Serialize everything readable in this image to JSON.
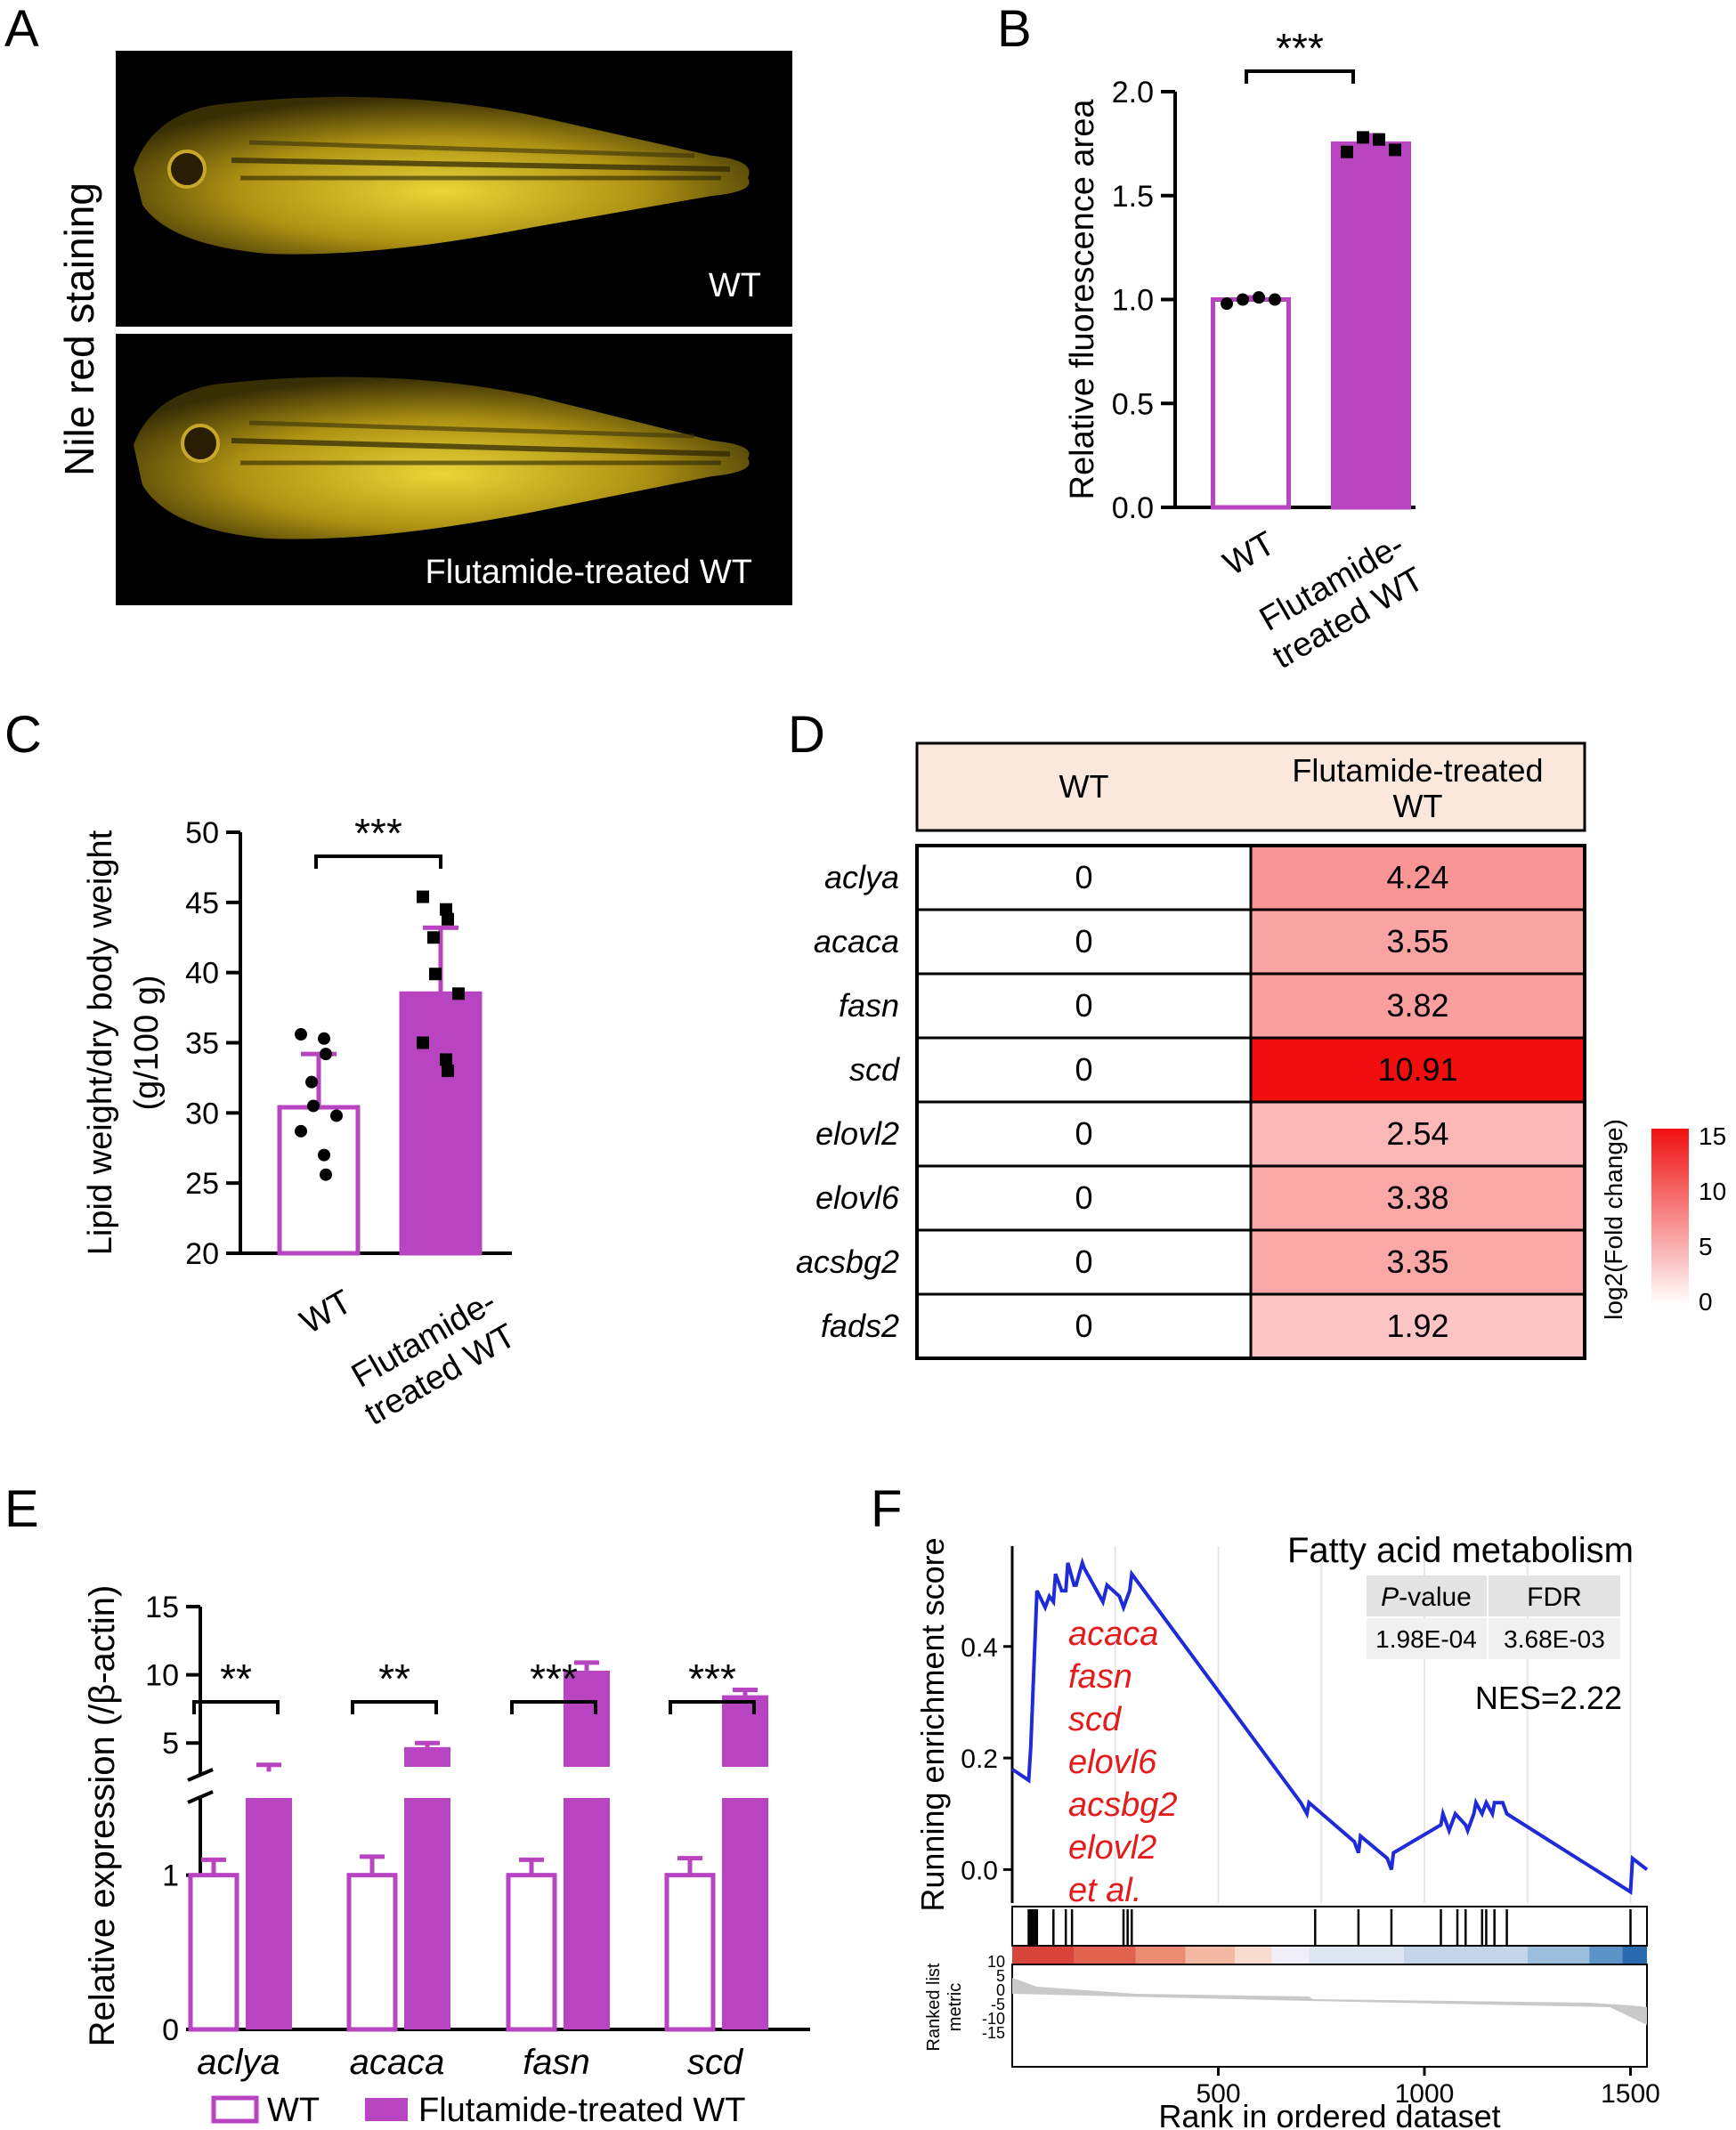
{
  "colors": {
    "wt": "#ffffff",
    "flut": "#b944c1",
    "axis": "#000000",
    "red_text": "#e31b1b",
    "gsea_line": "#1f2bd6",
    "table_header": "#fbe8dc"
  },
  "panel_a": {
    "letter": "A",
    "ylabel": "Nile red staining",
    "image_labels": [
      "WT",
      "Flutamide-treated WT"
    ]
  },
  "chart_data": [
    {
      "panel": "B",
      "type": "bar",
      "categories": [
        "WT",
        "Flutamide-\ntreated WT"
      ],
      "values": [
        1.0,
        1.75
      ],
      "error": [
        0.01,
        0.04
      ],
      "points": [
        [
          0.98,
          1.0,
          1.01,
          1.0
        ],
        [
          1.71,
          1.78,
          1.77,
          1.72
        ]
      ],
      "ylabel": "Relative fluorescence area",
      "ylim": [
        0,
        2.0
      ],
      "yticks": [
        "0.0",
        "0.5",
        "1.0",
        "1.5",
        "2.0"
      ],
      "significance": "***"
    },
    {
      "panel": "C",
      "type": "bar",
      "categories": [
        "WT",
        "Flutamide-\ntreated WT"
      ],
      "values": [
        30.4,
        38.5
      ],
      "error": [
        3.8,
        4.7
      ],
      "points": [
        [
          35.6,
          35.3,
          34.2,
          32.2,
          30.5,
          29.8,
          28.7,
          27.0,
          25.6
        ],
        [
          45.4,
          44.5,
          43.8,
          42.5,
          39.9,
          38.5,
          35.0,
          33.8,
          33.0
        ]
      ],
      "ylabel": "Lipid weight/dry body weight\n(g/100 g)",
      "ylim": [
        20,
        50
      ],
      "yticks": [
        "20",
        "25",
        "30",
        "35",
        "40",
        "45",
        "50"
      ],
      "significance": "***"
    },
    {
      "panel": "D",
      "type": "heatmap",
      "columns": [
        "WT",
        "Flutamide-treated\nWT"
      ],
      "rows": [
        "aclya",
        "acaca",
        "fasn",
        "scd",
        "elovl2",
        "elovl6",
        "acsbg2",
        "fads2"
      ],
      "wt_values": [
        "0",
        "0",
        "0",
        "0",
        "0",
        "0",
        "0",
        "0"
      ],
      "flut_values": [
        "4.24",
        "3.55",
        "3.82",
        "10.91",
        "2.54",
        "3.38",
        "3.35",
        "1.92"
      ],
      "colorbar_label": "log2(Fold change)",
      "colorbar_ticks": [
        "15",
        "10",
        "5",
        "0"
      ],
      "colorbar_range": [
        0,
        15
      ]
    },
    {
      "panel": "E",
      "type": "bar",
      "categories": [
        "aclya",
        "acaca",
        "fasn",
        "scd"
      ],
      "series": [
        {
          "name": "WT",
          "values": [
            1.0,
            1.0,
            1.0,
            1.0
          ],
          "error": [
            0.1,
            0.12,
            0.1,
            0.11
          ]
        },
        {
          "name": "Flutamide-treated WT",
          "values": [
            2.9,
            4.7,
            10.3,
            8.5
          ],
          "error": [
            0.5,
            0.3,
            0.6,
            0.4
          ]
        }
      ],
      "significance": [
        "**",
        "**",
        "***",
        "***"
      ],
      "ylabel": "Relative expression (/β-actin)",
      "lower_axis": {
        "ylim": [
          0,
          1.5
        ],
        "yticks": [
          "0",
          "1"
        ]
      },
      "upper_axis": {
        "ylim": [
          2.6,
          15
        ],
        "yticks": [
          "5",
          "10",
          "15"
        ]
      },
      "legend": [
        "WT",
        "Flutamide-treated WT"
      ]
    },
    {
      "panel": "F",
      "type": "line",
      "title": "Fatty acid metabolism",
      "ylabel": "Running enrichment score",
      "xlabel": "Rank in ordered dataset",
      "xlim": [
        0,
        1540
      ],
      "ylim": [
        -0.06,
        0.58
      ],
      "xticks": [
        "500",
        "1000",
        "1500"
      ],
      "yticks": [
        "0.0",
        "0.2",
        "0.4"
      ],
      "x": [
        0,
        40,
        45,
        60,
        80,
        90,
        100,
        105,
        120,
        130,
        135,
        150,
        155,
        170,
        175,
        190,
        220,
        230,
        260,
        270,
        285,
        290,
        700,
        715,
        720,
        830,
        840,
        845,
        910,
        920,
        925,
        1040,
        1045,
        1060,
        1070,
        1075,
        1100,
        1105,
        1120,
        1125,
        1140,
        1150,
        1165,
        1170,
        1190,
        1200,
        1500,
        1505,
        1540
      ],
      "y": [
        0.18,
        0.16,
        0.22,
        0.5,
        0.47,
        0.49,
        0.48,
        0.53,
        0.5,
        0.5,
        0.55,
        0.51,
        0.51,
        0.55,
        0.54,
        0.52,
        0.48,
        0.51,
        0.49,
        0.47,
        0.5,
        0.53,
        0.12,
        0.1,
        0.12,
        0.05,
        0.03,
        0.06,
        0.02,
        0.0,
        0.03,
        0.08,
        0.1,
        0.07,
        0.09,
        0.1,
        0.08,
        0.07,
        0.1,
        0.12,
        0.1,
        0.12,
        0.1,
        0.12,
        0.12,
        0.1,
        -0.04,
        0.02,
        0.0
      ],
      "hits": [
        40,
        45,
        50,
        55,
        60,
        100,
        130,
        145,
        270,
        280,
        290,
        735,
        840,
        920,
        1040,
        1080,
        1100,
        1140,
        1150,
        1170,
        1200,
        1500
      ],
      "genes": [
        "acaca",
        "fasn",
        "scd",
        "elovl6",
        "acsbg2",
        "elovl2",
        "et al."
      ],
      "stats_headers": [
        "P-value",
        "FDR"
      ],
      "stats_values": [
        "1.98E-04",
        "3.68E-03"
      ],
      "nes": "NES=2.22",
      "metric_label": "Ranked list\nmetric",
      "metric_ticks": [
        "10",
        "5",
        "0",
        "-5",
        "-10",
        "-15"
      ]
    }
  ]
}
